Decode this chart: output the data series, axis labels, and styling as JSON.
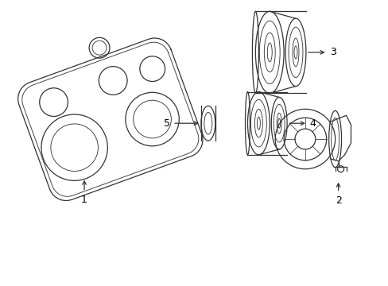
{
  "bg_color": "#ffffff",
  "line_color": "#333333",
  "line_width": 0.9,
  "fig_width": 4.89,
  "fig_height": 3.6
}
